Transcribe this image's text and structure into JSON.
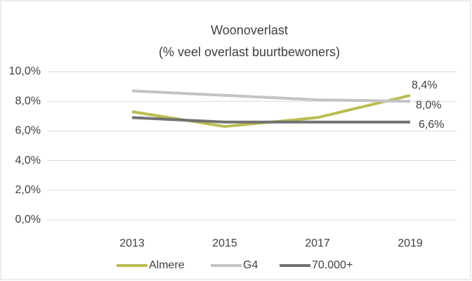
{
  "chart_data": {
    "type": "line",
    "title": "Woonoverlast",
    "subtitle": "(% veel overlast buurtbewoners)",
    "categories": [
      "2013",
      "2015",
      "2017",
      "2019"
    ],
    "series": [
      {
        "name": "Almere",
        "color": "#bcbc52",
        "values": [
          7.3,
          6.3,
          6.9,
          8.4
        ],
        "value_labels": [
          null,
          null,
          null,
          "8,4%"
        ]
      },
      {
        "name": "G4",
        "color": "#c3c3c3",
        "values": [
          8.7,
          8.4,
          8.1,
          8.0
        ],
        "value_labels": [
          null,
          null,
          null,
          "8,0%"
        ]
      },
      {
        "name": "70.000+",
        "color": "#727272",
        "values": [
          6.9,
          6.6,
          6.6,
          6.6
        ],
        "value_labels": [
          null,
          null,
          null,
          "6,6%"
        ]
      }
    ],
    "ylim": [
      0,
      10
    ],
    "yticks": [
      {
        "value": 0,
        "label": "0,0%"
      },
      {
        "value": 2,
        "label": "2,0%"
      },
      {
        "value": 4,
        "label": "4,0%"
      },
      {
        "value": 6,
        "label": "6,0%"
      },
      {
        "value": 8,
        "label": "8,0%"
      },
      {
        "value": 10,
        "label": "10,0%"
      }
    ],
    "grid": true,
    "legend": "bottom"
  }
}
